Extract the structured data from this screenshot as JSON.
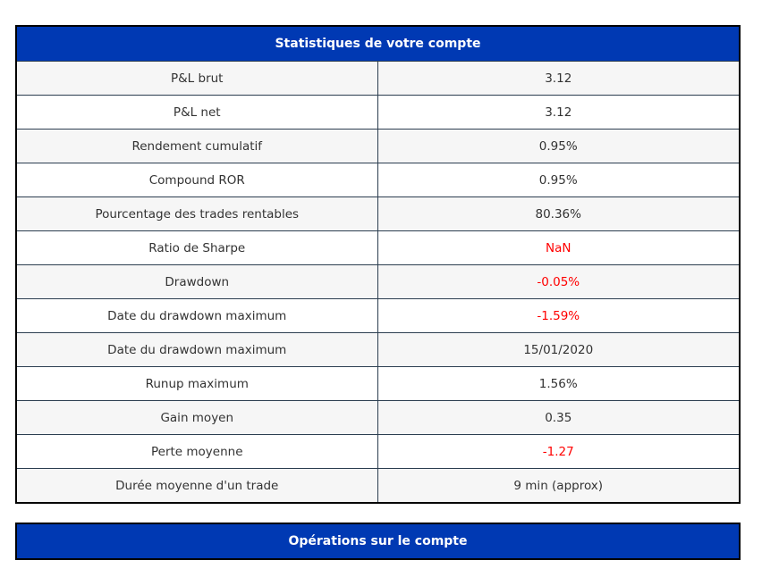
{
  "stats_table": {
    "title": "Statistiques de votre compte",
    "rows": [
      {
        "label": "P&L brut",
        "value": "3.12",
        "negative": false
      },
      {
        "label": "P&L net",
        "value": "3.12",
        "negative": false
      },
      {
        "label": "Rendement cumulatif",
        "value": "0.95%",
        "negative": false
      },
      {
        "label": "Compound ROR",
        "value": "0.95%",
        "negative": false
      },
      {
        "label": "Pourcentage des trades rentables",
        "value": "80.36%",
        "negative": false
      },
      {
        "label": "Ratio de Sharpe",
        "value": "NaN",
        "negative": true
      },
      {
        "label": "Drawdown",
        "value": "-0.05%",
        "negative": true
      },
      {
        "label": "Date du drawdown maximum",
        "value": "-1.59%",
        "negative": true
      },
      {
        "label": "Date du drawdown maximum",
        "value": "15/01/2020",
        "negative": false
      },
      {
        "label": "Runup maximum",
        "value": "1.56%",
        "negative": false
      },
      {
        "label": "Gain moyen",
        "value": "0.35",
        "negative": false
      },
      {
        "label": "Perte moyenne",
        "value": "-1.27",
        "negative": true
      },
      {
        "label": "Durée moyenne d'un trade",
        "value": "9 min (approx)",
        "negative": false
      }
    ]
  },
  "operations_table": {
    "title": "Opérations sur le compte"
  },
  "colors": {
    "header_bg": "#0039b3",
    "negative": "#ff0000"
  }
}
